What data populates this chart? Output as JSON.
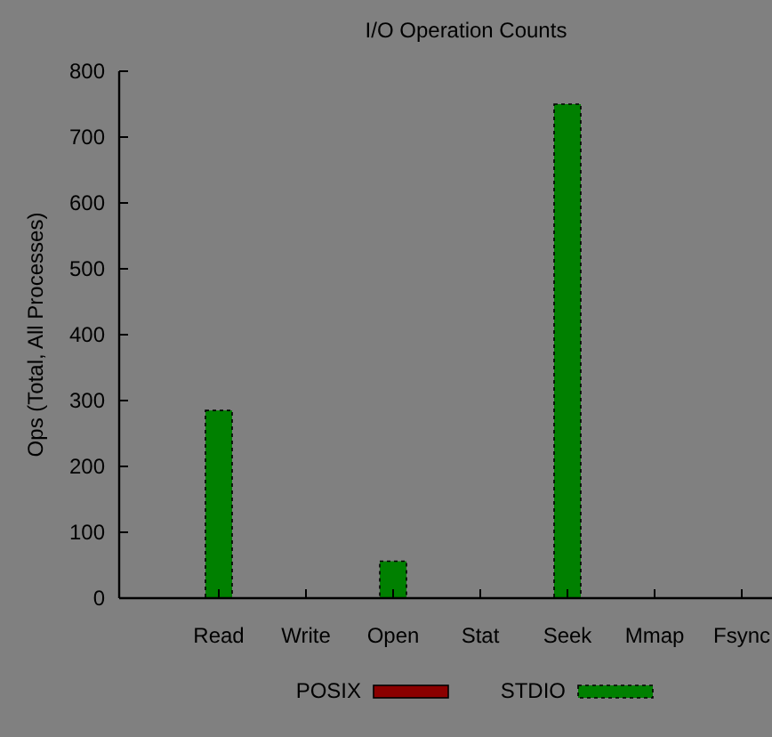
{
  "chart_data": {
    "type": "bar",
    "title": "I/O Operation Counts",
    "ylabel": "Ops (Total, All Processes)",
    "categories": [
      "Read",
      "Write",
      "Open",
      "Stat",
      "Seek",
      "Mmap",
      "Fsync"
    ],
    "series": [
      {
        "name": "POSIX",
        "color": "#8b0000",
        "values": [
          0,
          0,
          0,
          0,
          0,
          0,
          0
        ]
      },
      {
        "name": "STDIO",
        "color": "#008000",
        "values": [
          285,
          0,
          56,
          0,
          750,
          0,
          0
        ]
      }
    ],
    "ylim": [
      0,
      800
    ],
    "yticks": [
      0,
      100,
      200,
      300,
      400,
      500,
      600,
      700,
      800
    ],
    "grid": false,
    "legend": "bottom"
  }
}
